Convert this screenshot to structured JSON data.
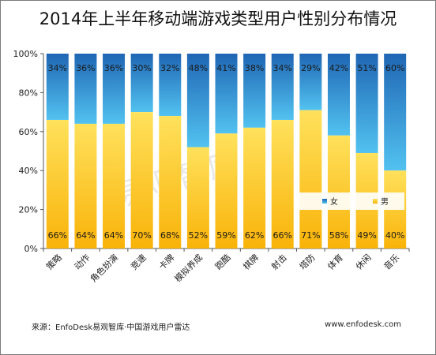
{
  "title": "2014年上半年移动端游戏类型用户性别分布情况",
  "watermark": "易观智库",
  "source": "来源：EnfoDesk易观智库·中国游戏用户雷达",
  "site": "www.enfodesk.com",
  "colors": {
    "female_top": "#1f66b4",
    "female_bottom": "#52c2f0",
    "male_top": "#ffe15c",
    "male_bottom": "#f9b309",
    "female_label": "#1a1a1a",
    "male_label": "#1a1a1a"
  },
  "chart_data": {
    "type": "bar",
    "stacked": true,
    "percent_stacked": true,
    "categories": [
      "策略",
      "动作",
      "角色扮演",
      "竞速",
      "卡牌",
      "模拟养成",
      "跑酷",
      "棋牌",
      "射击",
      "塔防",
      "体育",
      "休闲",
      "音乐"
    ],
    "series": [
      {
        "name": "男",
        "values": [
          66,
          64,
          64,
          70,
          68,
          52,
          59,
          62,
          66,
          71,
          58,
          49,
          40
        ]
      },
      {
        "name": "女",
        "values": [
          34,
          36,
          36,
          30,
          32,
          48,
          41,
          38,
          34,
          29,
          42,
          51,
          60
        ]
      }
    ],
    "value_suffix": "%",
    "ylim": [
      0,
      100
    ],
    "yticks": [
      "0%",
      "20%",
      "40%",
      "60%",
      "80%",
      "100%"
    ],
    "legend": [
      "女",
      "男"
    ],
    "legend_position": "inside right",
    "grid": false
  }
}
